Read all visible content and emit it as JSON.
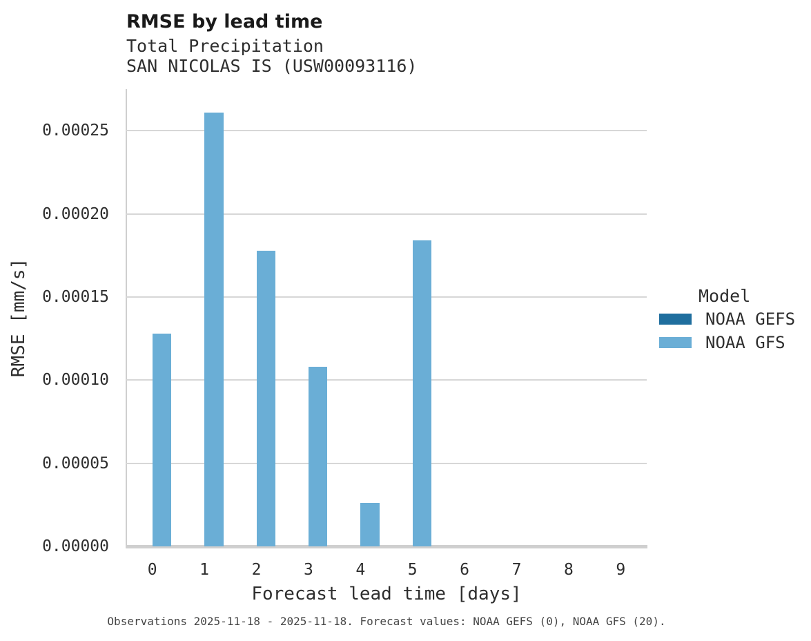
{
  "chart_data": {
    "type": "bar",
    "title": "RMSE by lead time",
    "subtitle_lines": [
      "Total Precipitation",
      "SAN NICOLAS IS (USW00093116)"
    ],
    "xlabel": "Forecast lead time [days]",
    "ylabel": "RMSE [mm/s]",
    "categories": [
      "0",
      "1",
      "2",
      "3",
      "4",
      "5",
      "6",
      "7",
      "8",
      "9"
    ],
    "series": [
      {
        "name": "NOAA GEFS",
        "color": "#1f6e9e",
        "values": [
          0,
          0,
          0,
          0,
          0,
          0,
          0,
          0,
          0,
          0
        ]
      },
      {
        "name": "NOAA GFS",
        "color": "#6aaed6",
        "values": [
          0.000128,
          0.000261,
          0.000178,
          0.000108,
          2.6e-05,
          0.000184,
          0,
          0,
          0,
          0
        ]
      }
    ],
    "y_ticks": [
      {
        "label": "0.00000",
        "value": 0
      },
      {
        "label": "0.00005",
        "value": 5e-05
      },
      {
        "label": "0.00010",
        "value": 0.0001
      },
      {
        "label": "0.00015",
        "value": 0.00015
      },
      {
        "label": "0.00020",
        "value": 0.0002
      },
      {
        "label": "0.00025",
        "value": 0.00025
      }
    ],
    "ylim": [
      0,
      0.000275
    ],
    "grid": true,
    "legend": {
      "title": "Model",
      "position": "right"
    },
    "caption": "Observations 2025-11-18 - 2025-11-18. Forecast values: NOAA GEFS (0), NOAA GFS (20)."
  },
  "colors": {
    "background": "#ffffff",
    "gridline": "#d7d7d7",
    "axis": "#cfcfcf",
    "title_text": "#1a1a1a",
    "body_text": "#2e2e2e",
    "caption_text": "#454545"
  }
}
